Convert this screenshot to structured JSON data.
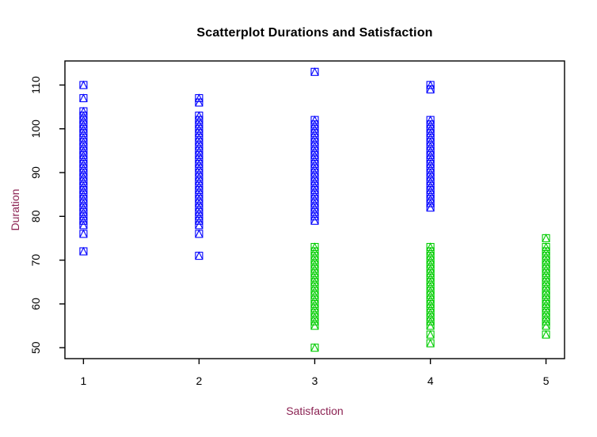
{
  "chart_data": {
    "type": "scatter",
    "title": "Scatterplot Durations and Satisfaction",
    "xlabel": "Satisfaction",
    "ylabel": "Duration",
    "xlim": [
      0.84,
      5.16
    ],
    "ylim": [
      47.5,
      115.5
    ],
    "x_ticks": [
      1,
      2,
      3,
      4,
      5
    ],
    "y_ticks": [
      50,
      60,
      70,
      80,
      90,
      100,
      110
    ],
    "grid": false,
    "legend": "none",
    "point_symbol": "square-with-inscribed-triangle",
    "axis_color": "#000000",
    "label_color": "#8B2252",
    "background_color": "#FFFFFF",
    "series": [
      {
        "name": "blue-group",
        "color": "#0000FF",
        "columns": [
          {
            "x": 1,
            "y": [
              110,
              107,
              104,
              103,
              102,
              101,
              100,
              99,
              98,
              97,
              96,
              95,
              94,
              93,
              92,
              91,
              90,
              89,
              88,
              87,
              86,
              85,
              84,
              83,
              82,
              81,
              80,
              79,
              78,
              76,
              72
            ]
          },
          {
            "x": 2,
            "y": [
              107,
              106,
              103,
              102,
              101,
              100,
              99,
              98,
              97,
              96,
              95,
              94,
              93,
              92,
              91,
              90,
              89,
              88,
              87,
              86,
              85,
              84,
              83,
              82,
              81,
              80,
              79,
              78,
              76,
              71
            ]
          },
          {
            "x": 3,
            "y": [
              113,
              102,
              101,
              100,
              99,
              98,
              97,
              96,
              95,
              94,
              93,
              92,
              91,
              90,
              89,
              88,
              87,
              86,
              85,
              84,
              83,
              82,
              81,
              80,
              79
            ]
          },
          {
            "x": 4,
            "y": [
              110,
              109,
              102,
              101,
              100,
              99,
              98,
              97,
              96,
              95,
              94,
              93,
              92,
              91,
              90,
              89,
              88,
              87,
              86,
              85,
              84,
              83,
              82
            ]
          }
        ]
      },
      {
        "name": "green-group",
        "color": "#00CD00",
        "columns": [
          {
            "x": 3,
            "y": [
              73,
              72,
              71,
              70,
              69,
              68,
              67,
              66,
              65,
              64,
              63,
              62,
              61,
              60,
              59,
              58,
              57,
              56,
              55,
              50
            ]
          },
          {
            "x": 4,
            "y": [
              73,
              72,
              71,
              70,
              69,
              68,
              67,
              66,
              65,
              64,
              63,
              62,
              61,
              60,
              59,
              58,
              57,
              56,
              55,
              53,
              51
            ]
          },
          {
            "x": 5,
            "y": [
              75,
              73,
              72,
              71,
              70,
              69,
              68,
              67,
              66,
              65,
              64,
              63,
              62,
              61,
              60,
              59,
              58,
              57,
              56,
              55,
              53
            ]
          }
        ]
      }
    ]
  }
}
